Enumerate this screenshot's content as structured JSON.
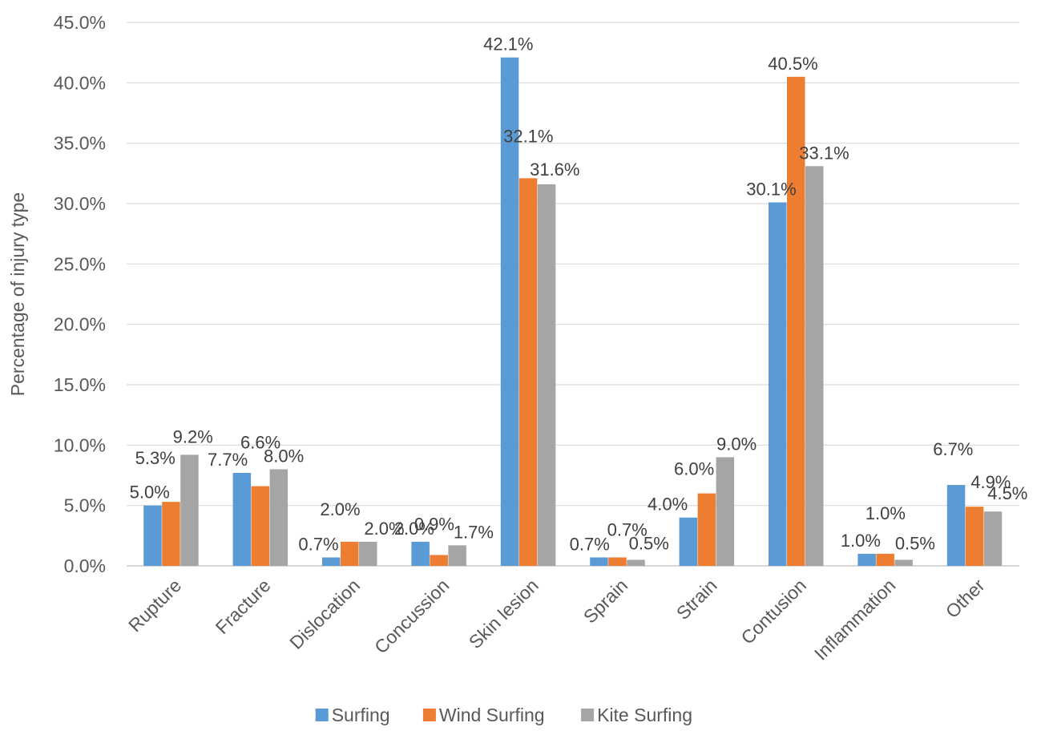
{
  "chart_data": {
    "type": "bar",
    "title": "",
    "xlabel": "",
    "ylabel": "Percentage of injury type",
    "ylim": [
      0,
      45
    ],
    "yticks": [
      "0.0%",
      "5.0%",
      "10.0%",
      "15.0%",
      "20.0%",
      "25.0%",
      "30.0%",
      "35.0%",
      "40.0%",
      "45.0%"
    ],
    "grid": true,
    "legend_position": "bottom",
    "categories": [
      "Rupture",
      "Fracture",
      "Dislocation",
      "Concussion",
      "Skin lesion",
      "Sprain",
      "Strain",
      "Contusion",
      "Inflammation",
      "Other"
    ],
    "series": [
      {
        "name": "Surfing",
        "color": "#5B9BD5",
        "values": [
          5.0,
          7.7,
          0.7,
          2.0,
          42.1,
          0.7,
          4.0,
          30.1,
          1.0,
          6.7
        ],
        "labels": [
          "5.0%",
          "7.7%",
          "0.7%",
          "2.0%",
          "42.1%",
          "0.7%",
          "4.0%",
          "30.1%",
          "1.0%",
          "6.7%"
        ]
      },
      {
        "name": "Wind Surfing",
        "color": "#ED7D31",
        "values": [
          5.3,
          6.6,
          2.0,
          0.9,
          32.1,
          0.7,
          6.0,
          40.5,
          1.0,
          4.9
        ],
        "labels": [
          "5.3%",
          "6.6%",
          "2.0%",
          "0.9%",
          "32.1%",
          "0.7%",
          "6.0%",
          "40.5%",
          "1.0%",
          "4.9%"
        ]
      },
      {
        "name": "Kite Surfing",
        "color": "#A5A5A5",
        "values": [
          9.2,
          8.0,
          2.0,
          1.7,
          31.6,
          0.5,
          9.0,
          33.1,
          0.5,
          4.5
        ],
        "labels": [
          "9.2%",
          "8.0%",
          "2.0%",
          "1.7%",
          "31.6%",
          "0.5%",
          "9.0%",
          "33.1%",
          "0.5%",
          "4.5%"
        ]
      }
    ]
  }
}
